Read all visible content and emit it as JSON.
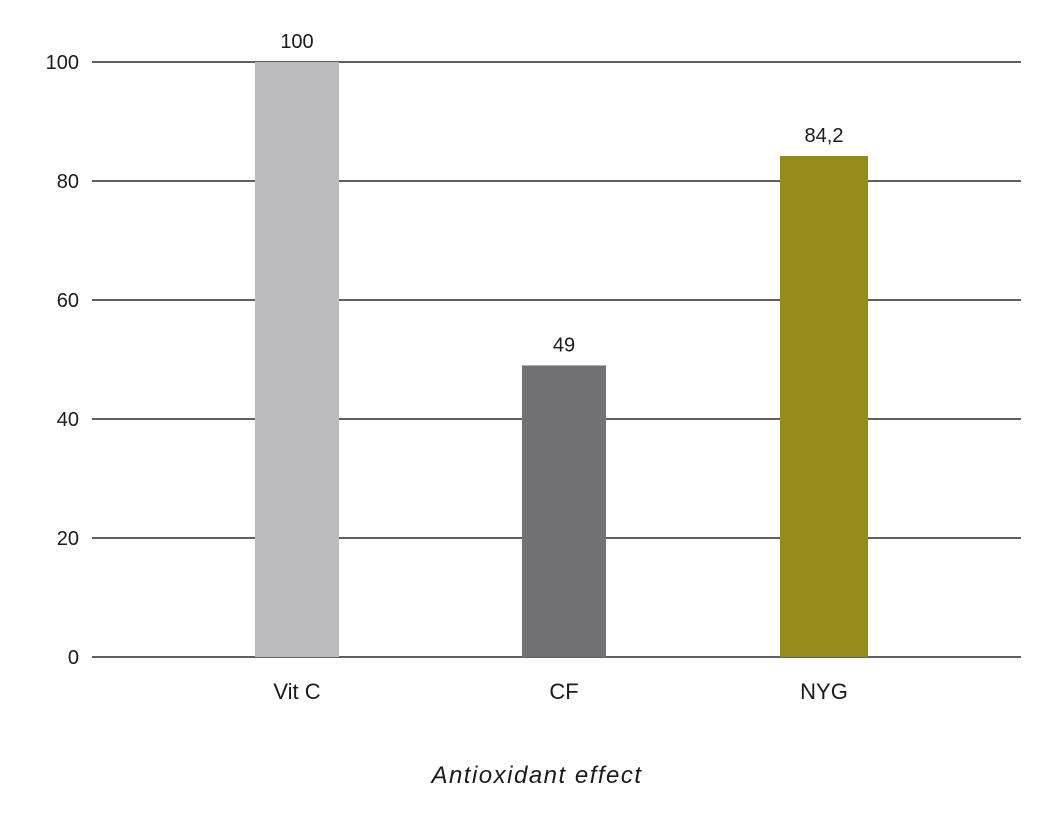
{
  "chart_data": {
    "type": "bar",
    "title": "",
    "xlabel": "Antioxidant effect",
    "ylabel": "",
    "categories": [
      "Vit C",
      "CF",
      "NYG"
    ],
    "values": [
      100,
      49,
      84.2
    ],
    "value_labels": [
      "100",
      "49",
      "84,2"
    ],
    "colors": [
      "#bcbcbe",
      "#717173",
      "#958a1a"
    ],
    "ylim": [
      0,
      100
    ],
    "yticks": [
      0,
      20,
      40,
      60,
      80,
      100
    ],
    "grid": true
  }
}
